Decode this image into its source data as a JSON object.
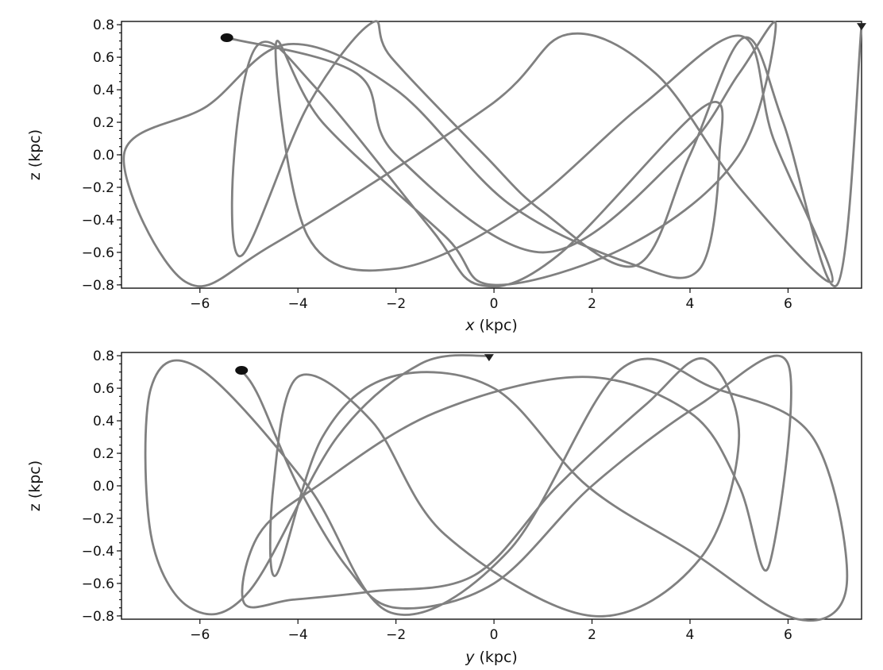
{
  "chart_data": [
    {
      "type": "line",
      "xlabel_var": "x",
      "xlabel_unit": " (kpc)",
      "ylabel": "z (kpc)",
      "xlim": [
        -7.6,
        7.5
      ],
      "ylim": [
        -0.82,
        0.82
      ],
      "xticks": [
        -6,
        -4,
        -2,
        0,
        2,
        4,
        6
      ],
      "xtick_labels": [
        "−6",
        "−4",
        "−2",
        "0",
        "2",
        "4",
        "6"
      ],
      "yticks": [
        -0.8,
        -0.6,
        -0.4,
        -0.2,
        0.0,
        0.2,
        0.4,
        0.6,
        0.8
      ],
      "ytick_labels": [
        "−0.8",
        "−0.6",
        "−0.4",
        "−0.2",
        "0.0",
        "0.2",
        "0.4",
        "0.6",
        "0.8"
      ],
      "grid": false,
      "line_color": "#808080",
      "series": [
        {
          "kind": "orbit",
          "points": [
            [
              7.5,
              0.8
            ],
            [
              7.0,
              -0.8
            ],
            [
              5.9,
              0.2
            ],
            [
              5.1,
              0.72
            ],
            [
              4.0,
              0.0
            ],
            [
              2.9,
              -0.68
            ],
            [
              1.0,
              -0.35
            ],
            [
              -0.2,
              0.0
            ],
            [
              -2.1,
              0.6
            ],
            [
              -2.5,
              0.81
            ],
            [
              -3.8,
              0.3
            ],
            [
              -5.15,
              -0.62
            ],
            [
              -5.3,
              0.0
            ],
            [
              -4.8,
              0.68
            ],
            [
              -3.6,
              0.4
            ],
            [
              -1.3,
              -0.45
            ],
            [
              -0.3,
              -0.8
            ],
            [
              1.3,
              -0.62
            ],
            [
              4.3,
              0.3
            ],
            [
              4.6,
              0.0
            ],
            [
              4.2,
              -0.7
            ],
            [
              2.8,
              -0.67
            ],
            [
              0.3,
              -0.3
            ],
            [
              -2.0,
              0.4
            ],
            [
              -4.2,
              0.68
            ],
            [
              -5.85,
              0.3
            ],
            [
              -7.55,
              0.0
            ],
            [
              -6.3,
              -0.78
            ],
            [
              -4.5,
              -0.55
            ],
            [
              -0.1,
              0.3
            ],
            [
              1.5,
              0.74
            ],
            [
              3.3,
              0.5
            ],
            [
              5.0,
              -0.2
            ],
            [
              6.9,
              -0.78
            ],
            [
              5.7,
              0.1
            ],
            [
              5.05,
              0.73
            ],
            [
              3.0,
              0.3
            ],
            [
              0.5,
              -0.35
            ],
            [
              -2.0,
              -0.7
            ],
            [
              -3.8,
              -0.5
            ],
            [
              -4.45,
              0.68
            ],
            [
              -3.5,
              0.2
            ],
            [
              -1.0,
              -0.5
            ],
            [
              0.0,
              -0.8
            ],
            [
              2.8,
              -0.55
            ],
            [
              5.0,
              0.0
            ],
            [
              5.75,
              0.8
            ],
            [
              5.0,
              0.5
            ],
            [
              3.8,
              0.0
            ],
            [
              1.0,
              -0.6
            ],
            [
              -2.0,
              0.0
            ],
            [
              -2.8,
              0.5
            ],
            [
              -5.45,
              0.72
            ]
          ]
        }
      ],
      "markers": [
        {
          "kind": "start-triangle",
          "x": 7.5,
          "y": 0.8,
          "color": "#222222"
        },
        {
          "kind": "end-dot",
          "x": -5.45,
          "y": 0.72,
          "color": "#111111"
        }
      ]
    },
    {
      "type": "line",
      "xlabel_var": "y",
      "xlabel_unit": " (kpc)",
      "ylabel": "z (kpc)",
      "xlim": [
        -7.6,
        7.5
      ],
      "ylim": [
        -0.82,
        0.82
      ],
      "xticks": [
        -6,
        -4,
        -2,
        0,
        2,
        4,
        6
      ],
      "xtick_labels": [
        "−6",
        "−4",
        "−2",
        "0",
        "2",
        "4",
        "6"
      ],
      "yticks": [
        -0.8,
        -0.6,
        -0.4,
        -0.2,
        0.0,
        0.2,
        0.4,
        0.6,
        0.8
      ],
      "ytick_labels": [
        "−0.8",
        "−0.6",
        "−0.4",
        "−0.2",
        "0.0",
        "0.2",
        "0.4",
        "0.6",
        "0.8"
      ],
      "grid": false,
      "line_color": "#808080",
      "series": [
        {
          "kind": "orbit",
          "points": [
            [
              -0.1,
              0.8
            ],
            [
              -1.5,
              0.75
            ],
            [
              -3.2,
              0.3
            ],
            [
              -5.0,
              -0.65
            ],
            [
              -6.2,
              -0.75
            ],
            [
              -7.0,
              -0.3
            ],
            [
              -7.0,
              0.6
            ],
            [
              -6.0,
              0.72
            ],
            [
              -3.8,
              0.0
            ],
            [
              -2.1,
              -0.78
            ],
            [
              0.3,
              -0.4
            ],
            [
              2.6,
              0.72
            ],
            [
              4.5,
              0.6
            ],
            [
              6.5,
              0.3
            ],
            [
              7.2,
              -0.6
            ],
            [
              6.2,
              -0.82
            ],
            [
              4.0,
              -0.4
            ],
            [
              1.9,
              0.0
            ],
            [
              0.0,
              0.6
            ],
            [
              -2.1,
              0.67
            ],
            [
              -3.5,
              0.3
            ],
            [
              -4.45,
              -0.55
            ],
            [
              -4.5,
              0.0
            ],
            [
              -4.0,
              0.67
            ],
            [
              -2.5,
              0.4
            ],
            [
              -1.0,
              -0.3
            ],
            [
              2.0,
              -0.8
            ],
            [
              4.2,
              -0.45
            ],
            [
              5.0,
              0.3
            ],
            [
              4.3,
              0.78
            ],
            [
              3.1,
              0.5
            ],
            [
              1.3,
              0.0
            ],
            [
              -0.4,
              -0.55
            ],
            [
              -2.5,
              -0.65
            ],
            [
              -4.1,
              -0.7
            ],
            [
              -5.1,
              -0.72
            ],
            [
              -4.8,
              -0.3
            ],
            [
              -3.6,
              0.0
            ],
            [
              -1.2,
              0.45
            ],
            [
              1.8,
              0.67
            ],
            [
              4.0,
              0.45
            ],
            [
              5.0,
              0.0
            ],
            [
              5.6,
              -0.5
            ],
            [
              6.0,
              0.75
            ],
            [
              4.2,
              0.5
            ],
            [
              2.0,
              0.0
            ],
            [
              0.0,
              -0.6
            ],
            [
              -2.0,
              -0.75
            ],
            [
              -3.0,
              -0.5
            ],
            [
              -4.0,
              0.0
            ],
            [
              -4.8,
              0.55
            ],
            [
              -5.15,
              0.71
            ]
          ]
        }
      ],
      "markers": [
        {
          "kind": "start-triangle",
          "x": -0.1,
          "y": 0.8,
          "color": "#222222"
        },
        {
          "kind": "end-dot",
          "x": -5.15,
          "y": 0.71,
          "color": "#111111"
        }
      ]
    }
  ]
}
